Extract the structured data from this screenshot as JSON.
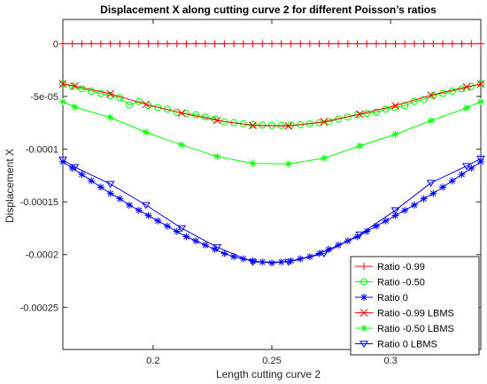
{
  "chart_data": {
    "type": "line",
    "title": "Displacement X along cutting curve 2 for different Poisson’s ratios",
    "xlabel": "Length cutting curve 2",
    "ylabel": "Displacement X",
    "xlim": [
      0.162,
      0.338
    ],
    "ylim": [
      -0.00029,
      2.3e-05
    ],
    "xticks": [
      0.2,
      0.25,
      0.3
    ],
    "xtick_labels": [
      "0.2",
      "0.25",
      "0.3"
    ],
    "yticks": [
      0,
      -5e-05,
      -0.0001,
      -0.00015,
      -0.0002,
      -0.00025
    ],
    "ytick_labels": [
      "0",
      "-5e-05",
      "-0.0001",
      "-0.00015",
      "-0.0002",
      "-0.00025"
    ],
    "legend_position": "bottom-right",
    "series": [
      {
        "name": "Ratio -0.99",
        "color": "#ff0000",
        "marker": "plus",
        "x": [
          0.162,
          0.166,
          0.17,
          0.174,
          0.178,
          0.182,
          0.186,
          0.19,
          0.194,
          0.198,
          0.202,
          0.206,
          0.21,
          0.214,
          0.218,
          0.222,
          0.226,
          0.23,
          0.234,
          0.238,
          0.242,
          0.246,
          0.25,
          0.254,
          0.258,
          0.262,
          0.266,
          0.27,
          0.274,
          0.278,
          0.282,
          0.286,
          0.29,
          0.294,
          0.298,
          0.302,
          0.306,
          0.31,
          0.314,
          0.318,
          0.322,
          0.326,
          0.33,
          0.334,
          0.338
        ],
        "y": [
          0,
          0,
          0,
          0,
          0,
          0,
          0,
          0,
          0,
          0,
          0,
          0,
          0,
          0,
          0,
          0,
          0,
          0,
          0,
          0,
          0,
          0,
          0,
          0,
          0,
          0,
          0,
          0,
          0,
          0,
          0,
          0,
          0,
          0,
          0,
          0,
          0,
          0,
          0,
          0,
          0,
          0,
          0,
          0,
          0
        ]
      },
      {
        "name": "Ratio -0.50",
        "color": "#00ff00",
        "marker": "circle",
        "x": [
          0.162,
          0.166,
          0.17,
          0.174,
          0.178,
          0.182,
          0.186,
          0.19,
          0.194,
          0.198,
          0.202,
          0.206,
          0.21,
          0.214,
          0.218,
          0.222,
          0.226,
          0.23,
          0.234,
          0.238,
          0.242,
          0.246,
          0.25,
          0.254,
          0.258,
          0.262,
          0.266,
          0.27,
          0.274,
          0.278,
          0.282,
          0.286,
          0.29,
          0.294,
          0.298,
          0.302,
          0.306,
          0.31,
          0.314,
          0.318,
          0.322,
          0.326,
          0.33,
          0.334,
          0.338
        ],
        "y": [
          -3.81e-05,
          -4.05e-05,
          -4.28e-05,
          -4.5e-05,
          -4.72e-05,
          -4.92e-05,
          -5.12e-05,
          -5.8e-05,
          -5.48e-05,
          -5.86e-05,
          -6.05e-05,
          -6.21e-05,
          -6.5e-05,
          -6.62e-05,
          -6.75e-05,
          -6.95e-05,
          -7.15e-05,
          -7.4e-05,
          -7.5e-05,
          -7.6e-05,
          -7.68e-05,
          -7.72e-05,
          -7.75e-05,
          -7.75e-05,
          -7.72e-05,
          -7.68e-05,
          -7.6e-05,
          -7.5e-05,
          -7.4e-05,
          -7.15e-05,
          -6.95e-05,
          -6.75e-05,
          -6.62e-05,
          -6.5e-05,
          -6.21e-05,
          -6.05e-05,
          -5.86e-05,
          -5.48e-05,
          -5.3e-05,
          -4.92e-05,
          -4.72e-05,
          -4.5e-05,
          -4.28e-05,
          -4.05e-05,
          -3.81e-05
        ]
      },
      {
        "name": "Ratio 0",
        "color": "#0000ff",
        "marker": "asterisk",
        "x": [
          0.162,
          0.166,
          0.17,
          0.174,
          0.178,
          0.182,
          0.186,
          0.19,
          0.194,
          0.198,
          0.202,
          0.206,
          0.21,
          0.214,
          0.218,
          0.222,
          0.226,
          0.23,
          0.234,
          0.238,
          0.242,
          0.246,
          0.25,
          0.254,
          0.258,
          0.262,
          0.266,
          0.27,
          0.274,
          0.278,
          0.282,
          0.286,
          0.29,
          0.294,
          0.298,
          0.302,
          0.306,
          0.31,
          0.314,
          0.318,
          0.322,
          0.326,
          0.33,
          0.334,
          0.338
        ],
        "y": [
          -0.000112,
          -0.000118,
          -0.000124,
          -0.00013,
          -0.000136,
          -0.000142,
          -0.000147,
          -0.000153,
          -0.000158,
          -0.000163,
          -0.000168,
          -0.000173,
          -0.000178,
          -0.000183,
          -0.000187,
          -0.000191,
          -0.000195,
          -0.000199,
          -0.000202,
          -0.000204,
          -0.000206,
          -0.000207,
          -0.000208,
          -0.000207,
          -0.000206,
          -0.000204,
          -0.000202,
          -0.000199,
          -0.000195,
          -0.000191,
          -0.000187,
          -0.000183,
          -0.000178,
          -0.000173,
          -0.000168,
          -0.000163,
          -0.000158,
          -0.000153,
          -0.000147,
          -0.000142,
          -0.000136,
          -0.00013,
          -0.000124,
          -0.000118,
          -0.000112
        ]
      },
      {
        "name": "Ratio -0.99 LBMS",
        "color": "#ff0000",
        "marker": "x",
        "x": [
          0.162,
          0.167,
          0.182,
          0.197,
          0.212,
          0.227,
          0.242,
          0.257,
          0.272,
          0.287,
          0.302,
          0.317,
          0.332,
          0.338
        ],
        "y": [
          -3.81e-05,
          -4e-05,
          -4.75e-05,
          -5.75e-05,
          -6.58e-05,
          -7.28e-05,
          -7.75e-05,
          -7.8e-05,
          -7.4e-05,
          -6.68e-05,
          -5.88e-05,
          -4.88e-05,
          -4.1e-05,
          -3.81e-05
        ]
      },
      {
        "name": "Ratio -0.50 LBMS",
        "color": "#00ff00",
        "marker": "star",
        "x": [
          0.162,
          0.167,
          0.182,
          0.197,
          0.212,
          0.227,
          0.242,
          0.257,
          0.272,
          0.287,
          0.302,
          0.317,
          0.332,
          0.338
        ],
        "y": [
          -5.5e-05,
          -6e-05,
          -7e-05,
          -8.4e-05,
          -9.6e-05,
          -0.000107,
          -0.0001135,
          -0.000114,
          -0.0001085,
          -9.7e-05,
          -8.6e-05,
          -7.3e-05,
          -6.1e-05,
          -5.5e-05
        ]
      },
      {
        "name": "Ratio 0 LBMS",
        "color": "#0000ff",
        "marker": "triangle-down",
        "x": [
          0.162,
          0.167,
          0.182,
          0.197,
          0.212,
          0.227,
          0.242,
          0.257,
          0.272,
          0.287,
          0.302,
          0.317,
          0.332,
          0.338
        ],
        "y": [
          -0.00011,
          -0.000117,
          -0.000133,
          -0.000153,
          -0.000175,
          -0.000193,
          -0.000207,
          -0.000207,
          -0.000199,
          -0.000181,
          -0.000158,
          -0.000132,
          -0.000116,
          -0.000109
        ]
      }
    ]
  }
}
